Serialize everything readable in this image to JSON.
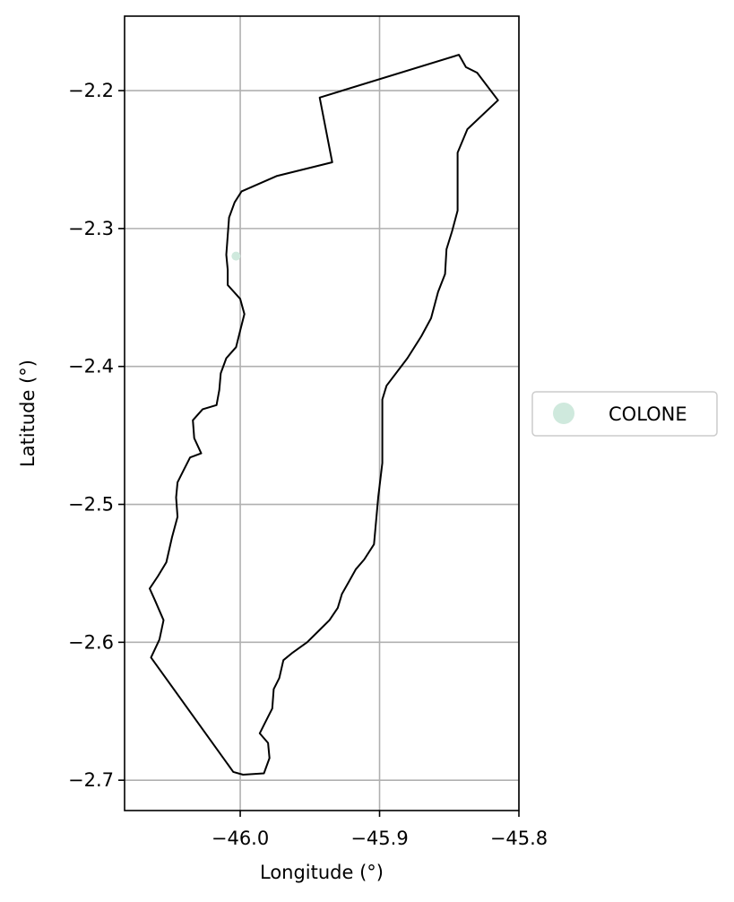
{
  "chart_data": {
    "type": "map",
    "xlabel": "Longitude (°)",
    "ylabel": "Latitude (°)",
    "xlim": [
      -46.083,
      -45.8
    ],
    "ylim": [
      -2.722,
      -2.146
    ],
    "x_ticks": [
      -46.0,
      -45.9,
      -45.8
    ],
    "x_tick_labels": [
      "−46.0",
      "−45.9",
      "−45.8"
    ],
    "y_ticks": [
      -2.2,
      -2.3,
      -2.4,
      -2.5,
      -2.6,
      -2.7
    ],
    "y_tick_labels": [
      "−2.2",
      "−2.3",
      "−2.4",
      "−2.5",
      "−2.6",
      "−2.7"
    ],
    "grid": true,
    "legend_position": "center-right, outside plot",
    "boundary": {
      "stroke": "#000000",
      "coordinates": [
        [
          -45.843,
          -2.174
        ],
        [
          -45.838,
          -2.183
        ],
        [
          -45.83,
          -2.187
        ],
        [
          -45.815,
          -2.207
        ],
        [
          -45.837,
          -2.228
        ],
        [
          -45.844,
          -2.245
        ],
        [
          -45.844,
          -2.287
        ],
        [
          -45.848,
          -2.302
        ],
        [
          -45.852,
          -2.315
        ],
        [
          -45.853,
          -2.333
        ],
        [
          -45.858,
          -2.346
        ],
        [
          -45.863,
          -2.365
        ],
        [
          -45.87,
          -2.378
        ],
        [
          -45.88,
          -2.394
        ],
        [
          -45.895,
          -2.414
        ],
        [
          -45.898,
          -2.424
        ],
        [
          -45.898,
          -2.47
        ],
        [
          -45.901,
          -2.495
        ],
        [
          -45.904,
          -2.529
        ],
        [
          -45.911,
          -2.54
        ],
        [
          -45.917,
          -2.547
        ],
        [
          -45.922,
          -2.556
        ],
        [
          -45.927,
          -2.565
        ],
        [
          -45.93,
          -2.575
        ],
        [
          -45.936,
          -2.584
        ],
        [
          -45.943,
          -2.591
        ],
        [
          -45.952,
          -2.6
        ],
        [
          -45.963,
          -2.608
        ],
        [
          -45.969,
          -2.613
        ],
        [
          -45.972,
          -2.626
        ],
        [
          -45.976,
          -2.634
        ],
        [
          -45.977,
          -2.648
        ],
        [
          -45.982,
          -2.658
        ],
        [
          -45.986,
          -2.666
        ],
        [
          -45.98,
          -2.673
        ],
        [
          -45.979,
          -2.684
        ],
        [
          -45.983,
          -2.695
        ],
        [
          -45.998,
          -2.696
        ],
        [
          -46.005,
          -2.694
        ],
        [
          -46.064,
          -2.611
        ],
        [
          -46.058,
          -2.598
        ],
        [
          -46.055,
          -2.584
        ],
        [
          -46.061,
          -2.57
        ],
        [
          -46.065,
          -2.561
        ],
        [
          -46.059,
          -2.552
        ],
        [
          -46.053,
          -2.542
        ],
        [
          -46.049,
          -2.524
        ],
        [
          -46.045,
          -2.509
        ],
        [
          -46.046,
          -2.495
        ],
        [
          -46.045,
          -2.484
        ],
        [
          -46.041,
          -2.476
        ],
        [
          -46.036,
          -2.466
        ],
        [
          -46.028,
          -2.463
        ],
        [
          -46.033,
          -2.452
        ],
        [
          -46.034,
          -2.439
        ],
        [
          -46.027,
          -2.431
        ],
        [
          -46.017,
          -2.428
        ],
        [
          -46.015,
          -2.417
        ],
        [
          -46.014,
          -2.405
        ],
        [
          -46.01,
          -2.394
        ],
        [
          -46.003,
          -2.386
        ],
        [
          -46.0,
          -2.374
        ],
        [
          -45.997,
          -2.362
        ],
        [
          -46.0,
          -2.351
        ],
        [
          -46.009,
          -2.341
        ],
        [
          -46.009,
          -2.33
        ],
        [
          -46.01,
          -2.319
        ],
        [
          -46.009,
          -2.305
        ],
        [
          -46.008,
          -2.292
        ],
        [
          -46.004,
          -2.281
        ],
        [
          -45.999,
          -2.273
        ],
        [
          -45.974,
          -2.262
        ],
        [
          -45.934,
          -2.252
        ],
        [
          -45.943,
          -2.205
        ]
      ]
    },
    "series": [
      {
        "name": "COLONE",
        "color": "#cfe9dd",
        "points": [
          [
            -46.003,
            -2.32
          ]
        ]
      }
    ]
  }
}
